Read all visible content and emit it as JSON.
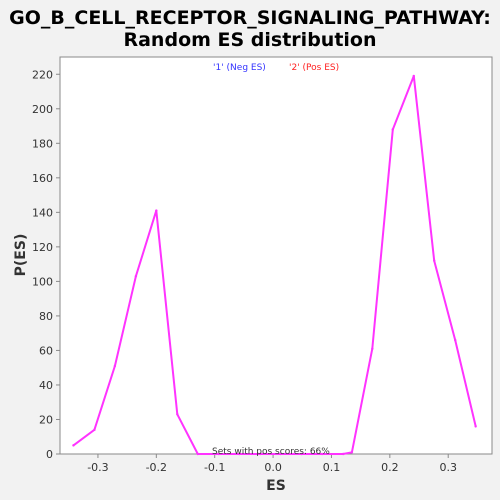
{
  "chart_data": {
    "type": "line",
    "title_line1": "GO_B_CELL_RECEPTOR_SIGNALING_PATHWAY:",
    "title_line2": "Random ES distribution",
    "xlabel": "ES",
    "ylabel": "P(ES)",
    "xlim": [
      -0.365,
      0.375
    ],
    "ylim": [
      0,
      230
    ],
    "xticks": [
      -0.3,
      -0.2,
      -0.1,
      0.0,
      0.1,
      0.2,
      0.3
    ],
    "xtick_labels": [
      "-0.3",
      "-0.2",
      "-0.1",
      "0.0",
      "0.1",
      "0.2",
      "0.3"
    ],
    "yticks": [
      0,
      20,
      40,
      60,
      80,
      100,
      120,
      140,
      160,
      180,
      200,
      220
    ],
    "ytick_labels": [
      "0",
      "20",
      "40",
      "60",
      "80",
      "100",
      "120",
      "140",
      "160",
      "180",
      "200",
      "220"
    ],
    "grid": false,
    "legend": [
      {
        "label": "'1' (Neg ES)",
        "color": "#3333ff"
      },
      {
        "label": "'2' (Pos ES)",
        "color": "#ff2222"
      }
    ],
    "annotation": "Sets with pos scores: 66%",
    "series": [
      {
        "color": "#ff33ff",
        "x": [
          -0.342,
          -0.306,
          -0.271,
          -0.235,
          -0.2,
          -0.164,
          -0.129,
          -0.093,
          -0.058,
          -0.022,
          0.013,
          0.049,
          0.084,
          0.12,
          0.135,
          0.17,
          0.205,
          0.241,
          0.276,
          0.312,
          0.347
        ],
        "y": [
          5,
          14,
          51,
          103,
          141,
          23,
          0,
          0,
          0,
          0,
          0,
          0,
          0,
          0,
          1,
          61,
          188,
          219,
          112,
          66,
          16
        ]
      }
    ]
  }
}
